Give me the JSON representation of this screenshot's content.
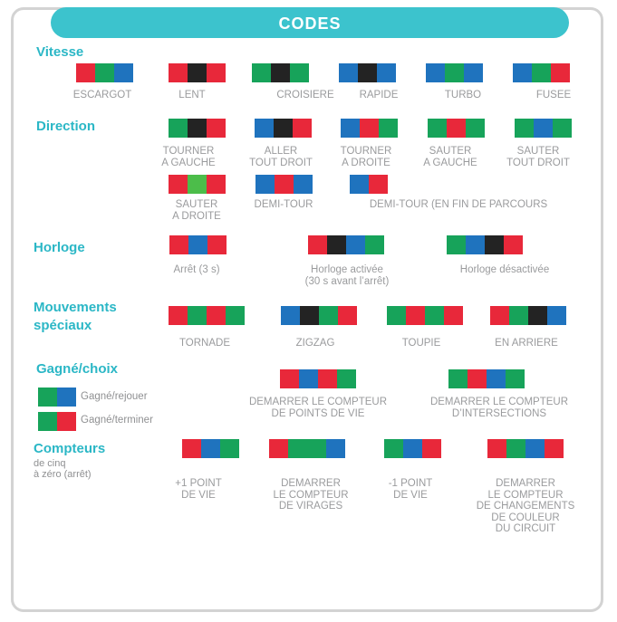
{
  "colors": {
    "R": "#e8283a",
    "G": "#17a35a",
    "B": "#1f73be",
    "K": "#232323",
    "L": "#4cbd4a",
    "accent": "#3cc3cd",
    "section": "#2bb7c6",
    "label": "#9a9b9d"
  },
  "header": {
    "title": "CODES"
  },
  "sections": {
    "vitesse": "Vitesse",
    "direction": "Direction",
    "horloge": "Horloge",
    "mouvements_1": "Mouvements",
    "mouvements_2": "spéciaux",
    "gagne": "Gagné/choix",
    "compteurs": "Compteurs",
    "compteurs_sub_1": "de cinq",
    "compteurs_sub_2": "à zéro (arrêt)"
  },
  "legend": {
    "rejouer": {
      "label": "Gagné/rejouer",
      "colors": [
        "G",
        "B"
      ]
    },
    "terminer": {
      "label": "Gagné/terminer",
      "colors": [
        "G",
        "R"
      ]
    }
  },
  "codes": [
    {
      "id": "escargot",
      "colors": [
        "R",
        "G",
        "B"
      ],
      "label_lines": [
        "ESCARGOT"
      ]
    },
    {
      "id": "lent",
      "colors": [
        "R",
        "K",
        "R"
      ],
      "label_lines": [
        "LENT"
      ]
    },
    {
      "id": "croisiere",
      "colors": [
        "G",
        "K",
        "G"
      ],
      "label_lines": [
        "CROISIERE"
      ]
    },
    {
      "id": "rapide",
      "colors": [
        "B",
        "K",
        "B"
      ],
      "label_lines": [
        "RAPIDE"
      ]
    },
    {
      "id": "turbo",
      "colors": [
        "B",
        "G",
        "B"
      ],
      "label_lines": [
        "TURBO"
      ]
    },
    {
      "id": "fusee",
      "colors": [
        "B",
        "G",
        "R"
      ],
      "label_lines": [
        "FUSEE"
      ]
    },
    {
      "id": "tourner-gauche",
      "colors": [
        "G",
        "K",
        "R"
      ],
      "label_lines": [
        "TOURNER",
        "A GAUCHE"
      ]
    },
    {
      "id": "aller-tout-droit",
      "colors": [
        "B",
        "K",
        "R"
      ],
      "label_lines": [
        "ALLER",
        "TOUT DROIT"
      ]
    },
    {
      "id": "tourner-droite",
      "colors": [
        "B",
        "R",
        "G"
      ],
      "label_lines": [
        "TOURNER",
        "A DROITE"
      ]
    },
    {
      "id": "sauter-gauche",
      "colors": [
        "G",
        "R",
        "G"
      ],
      "label_lines": [
        "SAUTER",
        "A GAUCHE"
      ]
    },
    {
      "id": "sauter-tout-droit",
      "colors": [
        "G",
        "B",
        "G"
      ],
      "label_lines": [
        "SAUTER",
        "TOUT DROIT"
      ]
    },
    {
      "id": "sauter-droite",
      "colors": [
        "R",
        "L",
        "R"
      ],
      "label_lines": [
        "SAUTER",
        "A DROITE"
      ]
    },
    {
      "id": "demi-tour",
      "colors": [
        "B",
        "R",
        "B"
      ],
      "label_lines": [
        "DEMI-TOUR"
      ]
    },
    {
      "id": "demi-tour-fin",
      "colors": [
        "B",
        "R"
      ],
      "label_lines": [
        "DEMI-TOUR (EN FIN DE PARCOURS"
      ]
    },
    {
      "id": "arret",
      "colors": [
        "R",
        "B",
        "R"
      ],
      "label_lines": [
        "Arrêt (3 s)"
      ]
    },
    {
      "id": "horloge-activee",
      "colors": [
        "R",
        "K",
        "B",
        "G"
      ],
      "label_lines": [
        "Horloge activée",
        "(30 s avant l’arrêt)"
      ]
    },
    {
      "id": "horloge-desactivee",
      "colors": [
        "G",
        "B",
        "K",
        "R"
      ],
      "label_lines": [
        "Horloge désactivée"
      ]
    },
    {
      "id": "tornade",
      "colors": [
        "R",
        "G",
        "R",
        "G"
      ],
      "label_lines": [
        "TORNADE"
      ]
    },
    {
      "id": "zigzag",
      "colors": [
        "B",
        "K",
        "G",
        "R"
      ],
      "label_lines": [
        "ZIGZAG"
      ]
    },
    {
      "id": "toupie",
      "colors": [
        "G",
        "R",
        "G",
        "R"
      ],
      "label_lines": [
        "TOUPIE"
      ]
    },
    {
      "id": "en-arriere",
      "colors": [
        "R",
        "G",
        "K",
        "B"
      ],
      "label_lines": [
        "EN ARRIERE"
      ]
    },
    {
      "id": "compteur-points-vie",
      "colors": [
        "R",
        "B",
        "R",
        "G"
      ],
      "label_lines": [
        "DEMARRER LE COMPTEUR",
        "DE POINTS DE VIE"
      ]
    },
    {
      "id": "compteur-intersections",
      "colors": [
        "G",
        "R",
        "B",
        "G"
      ],
      "label_lines": [
        "DEMARRER LE COMPTEUR",
        "D’INTERSECTIONS"
      ]
    },
    {
      "id": "plus-un-point",
      "colors": [
        "R",
        "B",
        "G"
      ],
      "label_lines": [
        "+1 POINT",
        "DE VIE"
      ]
    },
    {
      "id": "compteur-virages",
      "colors": [
        "R",
        "G",
        "G",
        "B"
      ],
      "label_lines": [
        "DEMARRER",
        "LE COMPTEUR",
        "DE VIRAGES"
      ]
    },
    {
      "id": "moins-un-point",
      "colors": [
        "G",
        "B",
        "R"
      ],
      "label_lines": [
        "-1 POINT",
        "DE VIE"
      ]
    },
    {
      "id": "compteur-couleur",
      "colors": [
        "R",
        "G",
        "B",
        "R"
      ],
      "label_lines": [
        "DEMARRER",
        "LE COMPTEUR",
        "DE CHANGEMENTS",
        "DE COULEUR",
        "DU CIRCUIT"
      ]
    }
  ]
}
